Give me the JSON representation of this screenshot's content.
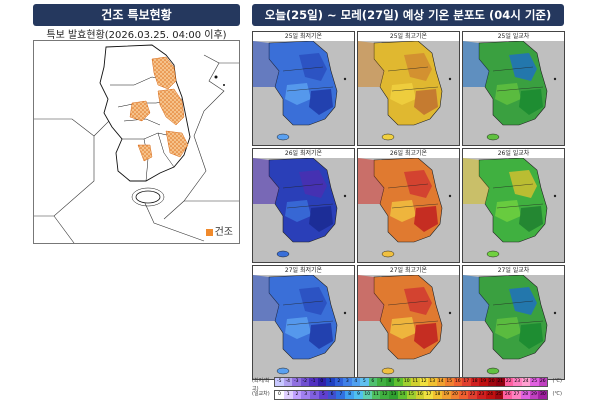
{
  "left_panel": {
    "title": "건조 특보현황",
    "subtitle": "특보 발효현황(2026.03.25. 04:00 이후)",
    "legend_label": "건조",
    "legend_color": "#f08a2c"
  },
  "right_panel": {
    "title": "오늘(25일) ~ 모레(27일) 예상 기온 분포도 (04시 기준)",
    "tiles": [
      {
        "label": "25일 최저기온",
        "theme": "cold"
      },
      {
        "label": "25일 최고기온",
        "theme": "warm"
      },
      {
        "label": "25일 일교차",
        "theme": "range"
      },
      {
        "label": "26일 최저기온",
        "theme": "cold2"
      },
      {
        "label": "26일 최고기온",
        "theme": "hot"
      },
      {
        "label": "26일 일교차",
        "theme": "range2"
      },
      {
        "label": "27일 최저기온",
        "theme": "cold"
      },
      {
        "label": "27일 최고기온",
        "theme": "hot"
      },
      {
        "label": "27일 일교차",
        "theme": "range"
      }
    ]
  },
  "scales": {
    "temp_label": "(최저/최고)",
    "temp_values": [
      "-5",
      "-4",
      "-3",
      "-2",
      "-1",
      "0",
      "1",
      "2",
      "3",
      "4",
      "5",
      "6",
      "7",
      "8",
      "9",
      "10",
      "11",
      "12",
      "13",
      "14",
      "15",
      "16",
      "17",
      "18",
      "19",
      "20",
      "21",
      "22",
      "23",
      "24",
      "25",
      "26"
    ],
    "temp_unit": "(℃)",
    "range_label": "(일교차)",
    "range_values": [
      "0",
      "1",
      "2",
      "3",
      "4",
      "5",
      "6",
      "7",
      "8",
      "9",
      "10",
      "11",
      "12",
      "13",
      "14",
      "15",
      "16",
      "17",
      "18",
      "19",
      "20",
      "21",
      "22",
      "23",
      "24",
      "25",
      "26",
      "27",
      "28",
      "29",
      "30"
    ],
    "range_unit": "(℃)"
  }
}
